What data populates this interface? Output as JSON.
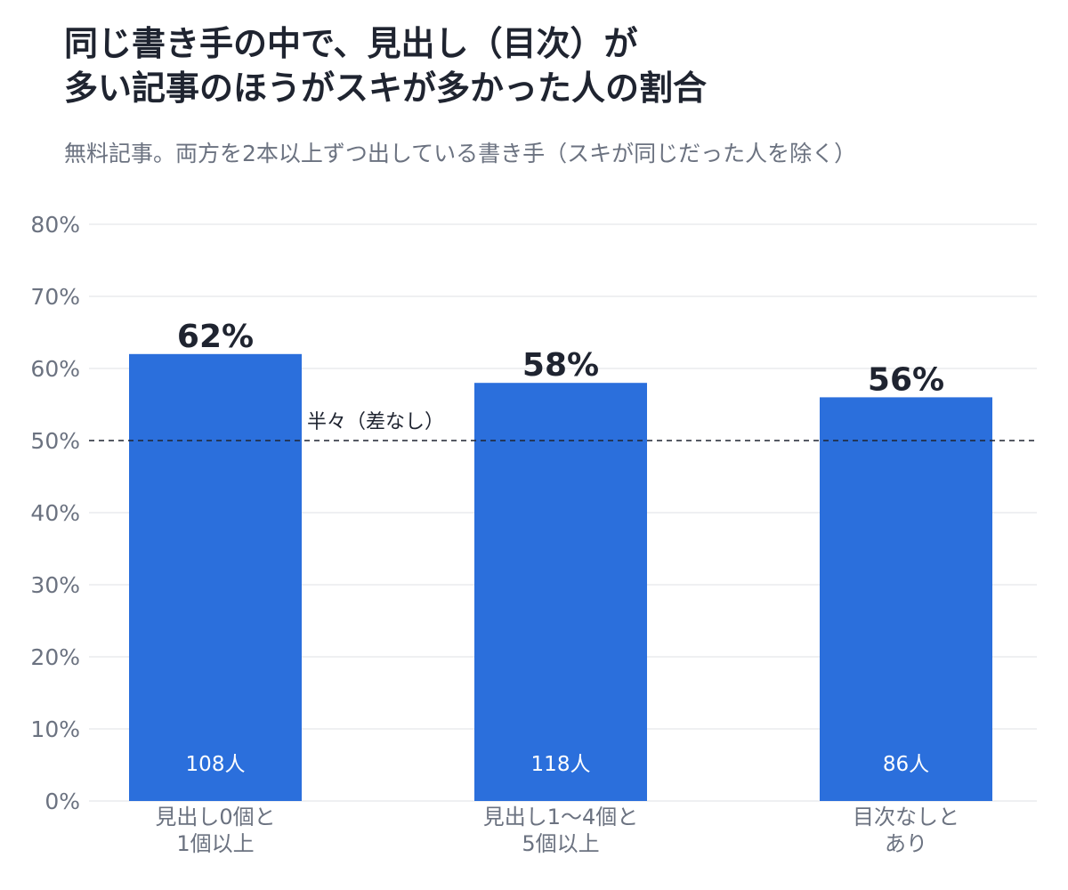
{
  "title": {
    "line1": "同じ書き手の中で、見出し（目次）が",
    "line2": "多い記事のほうがスキが多かった人の割合"
  },
  "subtitle": "無料記事。両方を2本以上ずつ出している書き手（スキが同じだった人を除く）",
  "colors": {
    "bar": "#2b6fdc",
    "grid": "#e5e7eb",
    "axis_text": "#6b7280",
    "title_text": "#1f2430",
    "reference_line": "#1f2430"
  },
  "chart_data": {
    "type": "bar",
    "categories": [
      [
        "見出し0個と",
        "1個以上"
      ],
      [
        "見出し1〜4個と",
        "5個以上"
      ],
      [
        "目次なしと",
        "あり"
      ]
    ],
    "values": [
      62,
      58,
      56
    ],
    "value_labels": [
      "62%",
      "58%",
      "56%"
    ],
    "counts": [
      "108人",
      "118人",
      "86人"
    ],
    "ylim": [
      0,
      80
    ],
    "yticks": [
      0,
      10,
      20,
      30,
      40,
      50,
      60,
      70,
      80
    ],
    "ytick_labels": [
      "0%",
      "10%",
      "20%",
      "30%",
      "40%",
      "50%",
      "60%",
      "70%",
      "80%"
    ],
    "reference_line": {
      "value": 50,
      "label": "半々（差なし）",
      "style": "dashed"
    },
    "grid": true,
    "legend": "none"
  }
}
